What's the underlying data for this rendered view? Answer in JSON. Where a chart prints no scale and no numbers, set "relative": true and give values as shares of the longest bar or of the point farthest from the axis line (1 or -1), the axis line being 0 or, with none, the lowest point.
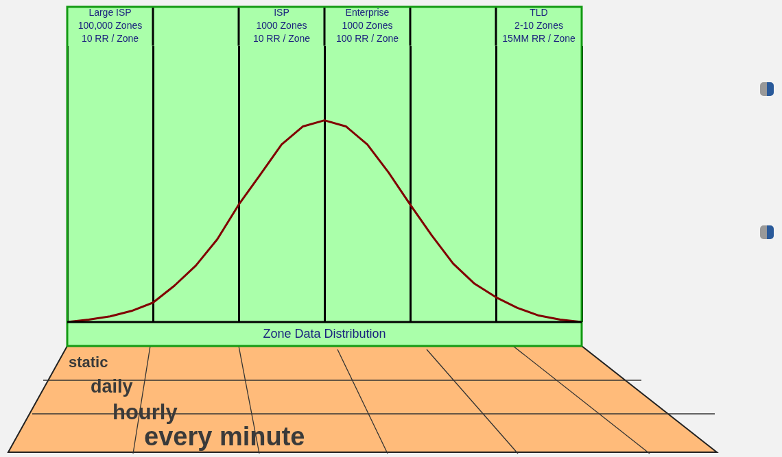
{
  "chart_data": {
    "type": "line",
    "relative": true,
    "xlabel": "Zone Data Distribution",
    "categories": [
      null,
      null,
      "Large ISP\n100,000 Zones\n10 RR / Zone",
      null,
      null,
      null,
      null,
      null,
      null,
      null,
      "ISP\n1000 Zones\n10 RR / Zone",
      null,
      null,
      null,
      "Enterprise\n1000 Zones\n100 RR / Zone",
      null,
      null,
      null,
      null,
      null,
      null,
      null,
      "TLD\n2-10 Zones\n15MM RR / Zone",
      null,
      null
    ],
    "series": [
      {
        "color": "#800000",
        "values": [
          0,
          0.012,
          0.028,
          0.055,
          0.096,
          0.18,
          0.28,
          0.41,
          0.582,
          0.73,
          0.88,
          0.97,
          1,
          0.97,
          0.88,
          0.74,
          0.582,
          0.43,
          0.29,
          0.19,
          0.123,
          0.07,
          0.032,
          0.012,
          0
        ]
      }
    ],
    "grid": "x",
    "legend": false,
    "marker": "none",
    "line_style": "solid",
    "annotations": [
      "static",
      "daily",
      "hourly",
      "every minute"
    ]
  }
}
